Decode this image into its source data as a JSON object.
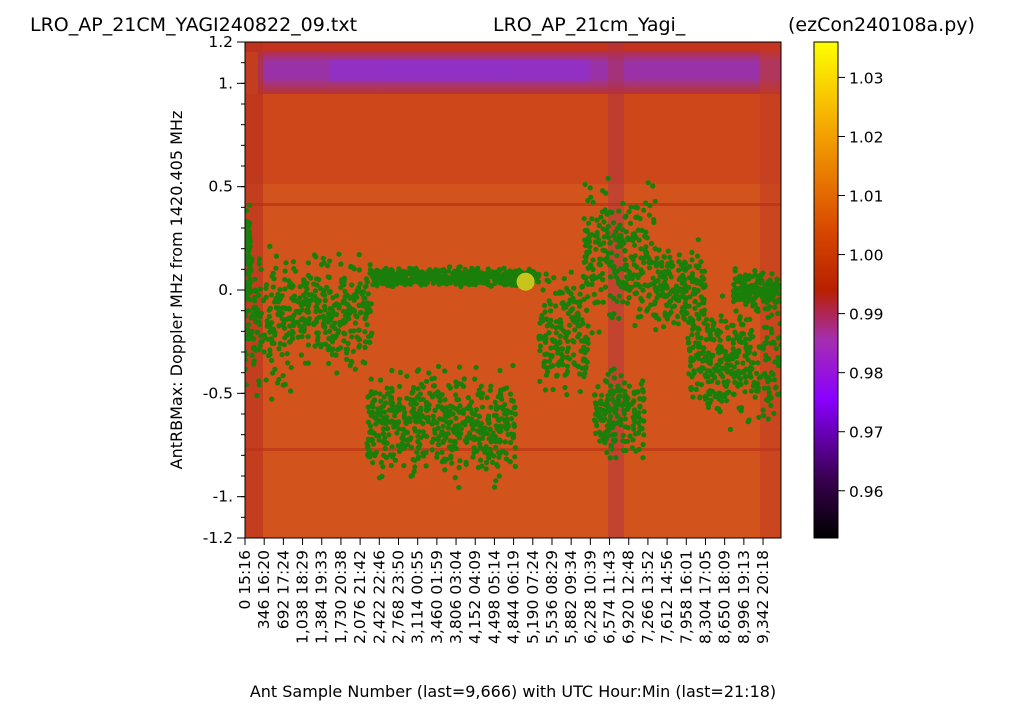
{
  "chart_data": {
    "type": "heatmap",
    "title_left": "LRO_AP_21CM_YAGI240822_09.txt",
    "title_center": "LRO_AP_21cm_Yagi_",
    "title_right": "(ezCon240108a.py)",
    "xlabel": "Ant Sample Number (last=9,666) with UTC Hour:Min (last=21:18)",
    "ylabel": "AntRBMax:  Doppler MHz from 1420.405 MHz",
    "xlim": [
      0,
      9666
    ],
    "ylim": [
      -1.2,
      1.2
    ],
    "x_ticks": [
      {
        "value": 0,
        "label": "0  15:16"
      },
      {
        "value": 346,
        "label": "346  16:20"
      },
      {
        "value": 692,
        "label": "692  17:24"
      },
      {
        "value": 1038,
        "label": "1,038  18:29"
      },
      {
        "value": 1384,
        "label": "1,384  19:33"
      },
      {
        "value": 1730,
        "label": "1,730  20:38"
      },
      {
        "value": 2076,
        "label": "2,076  21:42"
      },
      {
        "value": 2422,
        "label": "2,422  22:46"
      },
      {
        "value": 2768,
        "label": "2,768  23:50"
      },
      {
        "value": 3114,
        "label": "3,114  00:55"
      },
      {
        "value": 3460,
        "label": "3,460  01:59"
      },
      {
        "value": 3806,
        "label": "3,806  03:04"
      },
      {
        "value": 4152,
        "label": "4,152  04:09"
      },
      {
        "value": 4498,
        "label": "4,498  05:14"
      },
      {
        "value": 4844,
        "label": "4,844  06:19"
      },
      {
        "value": 5190,
        "label": "5,190  07:24"
      },
      {
        "value": 5536,
        "label": "5,536  08:29"
      },
      {
        "value": 5882,
        "label": "5,882  09:34"
      },
      {
        "value": 6228,
        "label": "6,228  10:39"
      },
      {
        "value": 6574,
        "label": "6,574  11:43"
      },
      {
        "value": 6920,
        "label": "6,920  12:48"
      },
      {
        "value": 7266,
        "label": "7,266  13:52"
      },
      {
        "value": 7612,
        "label": "7,612  14:56"
      },
      {
        "value": 7958,
        "label": "7,958  16:01"
      },
      {
        "value": 8304,
        "label": "8,304  17:05"
      },
      {
        "value": 8650,
        "label": "8,650  18:09"
      },
      {
        "value": 8996,
        "label": "8,996  19:13"
      },
      {
        "value": 9342,
        "label": "9,342  20:18"
      }
    ],
    "y_ticks": [
      {
        "value": 1.2,
        "label": "1.2"
      },
      {
        "value": 1.0,
        "label": "1."
      },
      {
        "value": 0.5,
        "label": "0.5"
      },
      {
        "value": 0.0,
        "label": "0."
      },
      {
        "value": -0.5,
        "label": "-0.5"
      },
      {
        "value": -1.0,
        "label": "-1."
      },
      {
        "value": -1.2,
        "label": "-1.2"
      }
    ],
    "y_minor_step": 0.1,
    "colorbar": {
      "range": [
        0.952,
        1.036
      ],
      "ticks": [
        {
          "value": 1.03,
          "label": "1.03"
        },
        {
          "value": 1.02,
          "label": "1.02"
        },
        {
          "value": 1.01,
          "label": "1.01"
        },
        {
          "value": 1.0,
          "label": "1.00"
        },
        {
          "value": 0.99,
          "label": "0.99"
        },
        {
          "value": 0.98,
          "label": "0.98"
        },
        {
          "value": 0.97,
          "label": "0.97"
        },
        {
          "value": 0.96,
          "label": "0.96"
        }
      ],
      "colormap": "gnuplot"
    },
    "heatmap_description": {
      "background_level": 1.005,
      "low_band_y_range": [
        0.95,
        1.15
      ],
      "low_band_x_range": [
        700,
        9666
      ],
      "low_band_level": 0.985
    },
    "scatter_series": {
      "color": "#1a7f0a",
      "segments": [
        {
          "x_range": [
            0,
            120
          ],
          "y_center": 0.15,
          "y_spread": 0.35
        },
        {
          "x_range": [
            0,
            900
          ],
          "y_center": -0.15,
          "y_spread": 0.45
        },
        {
          "x_range": [
            900,
            2300
          ],
          "y_center": -0.1,
          "y_spread": 0.35
        },
        {
          "x_range": [
            2300,
            5300
          ],
          "y_center": 0.06,
          "y_spread": 0.06
        },
        {
          "x_range": [
            2200,
            4900
          ],
          "y_center": -0.65,
          "y_spread": 0.35
        },
        {
          "x_range": [
            5300,
            6200
          ],
          "y_center": -0.2,
          "y_spread": 0.4
        },
        {
          "x_range": [
            6100,
            7400
          ],
          "y_center": 0.15,
          "y_spread": 0.45
        },
        {
          "x_range": [
            6300,
            7200
          ],
          "y_center": -0.6,
          "y_spread": 0.3
        },
        {
          "x_range": [
            7400,
            8300
          ],
          "y_center": 0.0,
          "y_spread": 0.3
        },
        {
          "x_range": [
            8000,
            9666
          ],
          "y_center": -0.35,
          "y_spread": 0.4
        },
        {
          "x_range": [
            8800,
            9666
          ],
          "y_center": 0.0,
          "y_spread": 0.12
        }
      ]
    },
    "highlight_point": {
      "x": 5060,
      "y": 0.04,
      "color": "#c8c41e"
    }
  }
}
